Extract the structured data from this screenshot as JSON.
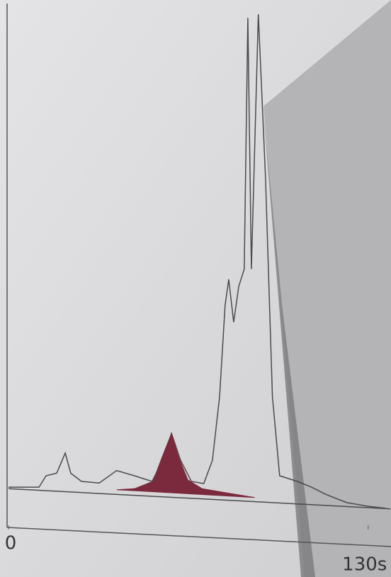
{
  "chart_data": {
    "type": "line",
    "xlim": [
      0,
      138
    ],
    "ylim": [
      0,
      100
    ],
    "xticks": [
      0,
      {
        "value": 130,
        "label": "130s"
      }
    ],
    "series": [
      {
        "color": "#4a4a4a",
        "fill": false,
        "x": [
          0,
          11,
          13.6,
          17.4,
          20.5,
          22.5,
          26.4,
          32.8,
          39.1,
          45.5,
          51.9,
          55.8,
          58.9,
          62.2,
          66.1,
          70.6,
          73.7,
          76.3,
          78.3,
          79.6,
          81.4,
          83.2,
          85.2,
          86.5,
          87.8,
          90.3,
          92.9,
          95.4,
          98,
          104.4,
          109.5,
          114.7,
          122.3,
          130,
          136.4
        ],
        "values": [
          7.8,
          7.8,
          10,
          10.5,
          14.4,
          10.5,
          8.9,
          8.6,
          11,
          10,
          8.9,
          13,
          18.2,
          13,
          8.9,
          8.5,
          13,
          25.3,
          43,
          48,
          39.7,
          46.6,
          50,
          98.6,
          50,
          99.3,
          67.8,
          25.3,
          10,
          8.9,
          7.8,
          6.4,
          4.8,
          4.1,
          3.7
        ]
      },
      {
        "color": "#7a2a3c",
        "fill": true,
        "x": [
          39.1,
          45.5,
          52.2,
          55.3,
          58.9,
          61.4,
          64.8,
          70,
          78.8,
          89
        ],
        "values": [
          7.3,
          7.5,
          8.9,
          13.3,
          18.2,
          13.7,
          9.2,
          7.5,
          6.7,
          5.8
        ]
      },
      {
        "color": "#4a4a4a",
        "fill": false,
        "x": [
          0,
          138
        ],
        "values": [
          7.5,
          3.6
        ]
      }
    ]
  }
}
